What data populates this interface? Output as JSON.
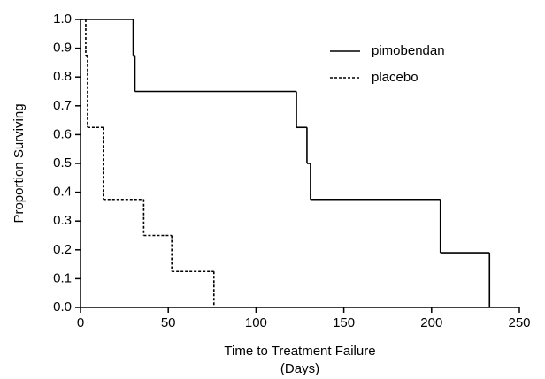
{
  "chart_data": {
    "type": "step",
    "x_label": [
      "Time to Treatment Failure",
      "(Days)"
    ],
    "y_label": "Proportion Surviving",
    "xlim": [
      0,
      250
    ],
    "xticks": [
      0,
      50,
      100,
      150,
      200,
      250
    ],
    "ylim": [
      0,
      1
    ],
    "yticks": [
      {
        "value": 0,
        "label": "0.0"
      },
      0.1,
      0.2,
      0.3,
      0.4,
      0.5,
      0.6,
      0.7,
      0.8,
      0.9,
      {
        "value": 1,
        "label": "1.0"
      }
    ],
    "legend": "upper-right",
    "series": [
      {
        "name": "pimobendan",
        "color": "#000000",
        "dash": "solid",
        "x": [
          0,
          30,
          31,
          123,
          129,
          131,
          205,
          233
        ],
        "values": [
          1,
          0.875,
          0.75,
          0.625,
          0.5,
          0.375,
          0.19,
          0
        ]
      },
      {
        "name": "placebo",
        "color": "#000000",
        "dash": "dotted",
        "x": [
          0,
          3,
          4,
          13,
          36,
          52,
          76
        ],
        "values": [
          1,
          0.875,
          0.625,
          0.375,
          0.25,
          0.125,
          0
        ]
      }
    ]
  }
}
